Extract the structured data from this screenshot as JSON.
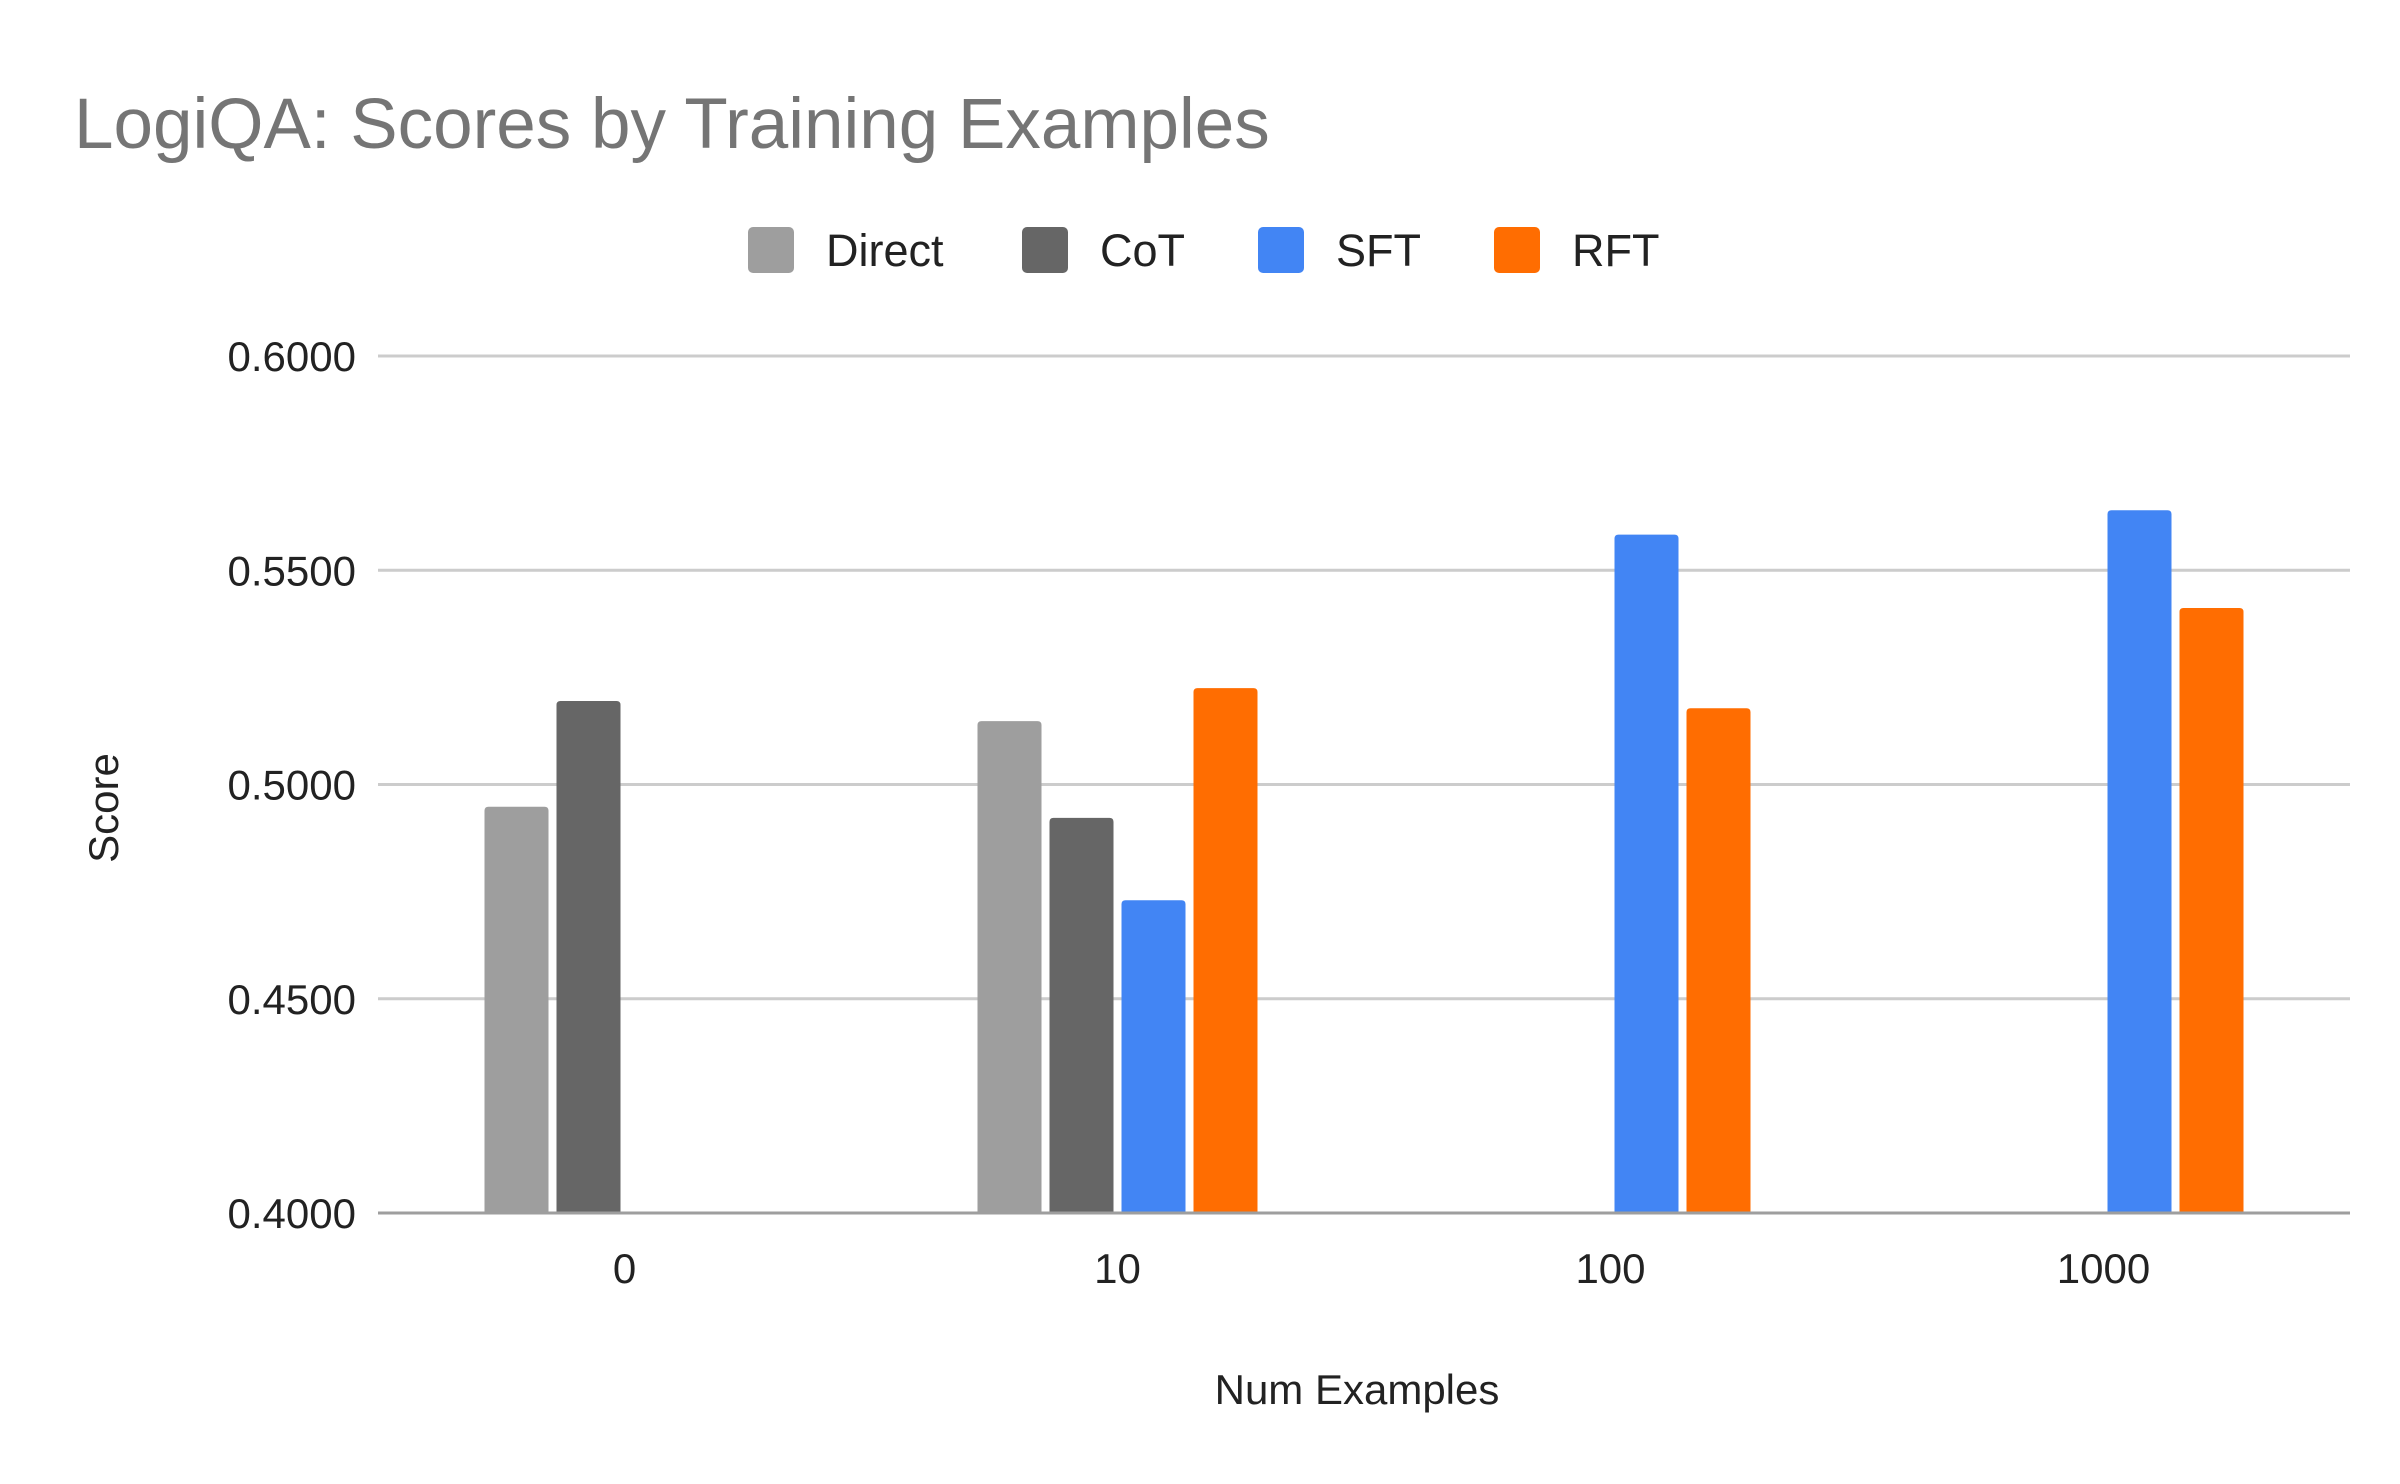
{
  "chart_data": {
    "type": "bar",
    "title": "LogiQA: Scores by Training Examples",
    "xlabel": "Num Examples",
    "ylabel": "Score",
    "categories": [
      "0",
      "10",
      "100",
      "1000"
    ],
    "ylim": [
      0.4,
      0.6
    ],
    "yticks": [
      "0.4000",
      "0.4500",
      "0.5000",
      "0.5500",
      "0.6000"
    ],
    "legend_position": "top-center",
    "grid": true,
    "series": [
      {
        "name": "Direct",
        "color": "#9e9e9e",
        "values": [
          0.4948,
          0.5148,
          null,
          null
        ]
      },
      {
        "name": "CoT",
        "color": "#666666",
        "values": [
          0.5195,
          0.4922,
          null,
          null
        ]
      },
      {
        "name": "SFT",
        "color": "#4285f4",
        "values": [
          null,
          0.473,
          0.5583,
          0.564
        ]
      },
      {
        "name": "RFT",
        "color": "#ff6d01",
        "values": [
          null,
          0.5225,
          0.5178,
          0.5412
        ]
      }
    ]
  }
}
